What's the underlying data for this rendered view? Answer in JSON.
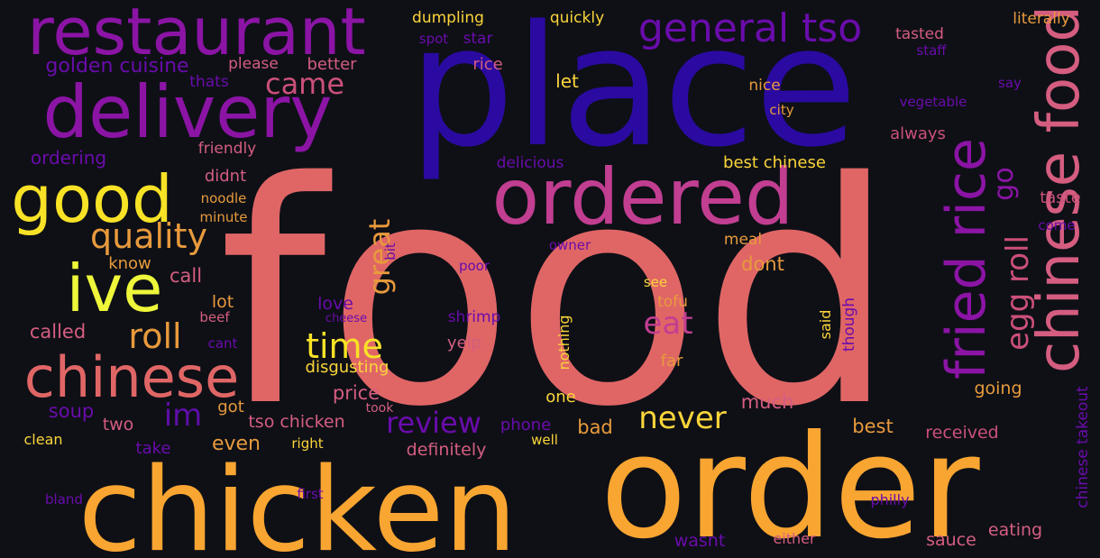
{
  "background": "#0e1016",
  "palette": {
    "salmon": "#e06666",
    "indigo": "#2a0aa0",
    "orange": "#f9a532",
    "purple": "#8b14a5",
    "magenta": "#c13e91",
    "yellow": "#f7e226",
    "pink": "#d45d80",
    "tan": "#e89a3c",
    "deeppurple": "#6a0cab",
    "rose": "#cb5079",
    "violet": "#5d0ea6",
    "lemon": "#fbd53a",
    "lime": "#eff73a"
  },
  "words": [
    {
      "text": "food",
      "color": "salmon"
    },
    {
      "text": "place",
      "color": "indigo"
    },
    {
      "text": "order",
      "color": "orange"
    },
    {
      "text": "chicken",
      "color": "orange"
    },
    {
      "text": "delivery",
      "color": "purple"
    },
    {
      "text": "restaurant",
      "color": "purple"
    },
    {
      "text": "ordered",
      "color": "magenta"
    },
    {
      "text": "chinese",
      "color": "salmon"
    },
    {
      "text": "good",
      "color": "yellow"
    },
    {
      "text": "ive",
      "color": "lime"
    },
    {
      "text": "general tso",
      "color": "deeppurple"
    },
    {
      "text": "chinese food",
      "color": "pink"
    },
    {
      "text": "fried rice",
      "color": "purple"
    },
    {
      "text": "egg roll",
      "color": "rose"
    },
    {
      "text": "go",
      "color": "purple"
    },
    {
      "text": "quality",
      "color": "tan"
    },
    {
      "text": "came",
      "color": "rose"
    },
    {
      "text": "golden cuisine",
      "color": "deeppurple"
    },
    {
      "text": "time",
      "color": "yellow"
    },
    {
      "text": "roll",
      "color": "tan"
    },
    {
      "text": "never",
      "color": "lemon"
    },
    {
      "text": "review",
      "color": "deeppurple"
    },
    {
      "text": "eat",
      "color": "magenta"
    },
    {
      "text": "great",
      "color": "tan"
    },
    {
      "text": "im",
      "color": "violet"
    },
    {
      "text": "even",
      "color": "tan"
    },
    {
      "text": "dumpling",
      "color": "lemon"
    },
    {
      "text": "quickly",
      "color": "lemon"
    },
    {
      "text": "literally",
      "color": "tan"
    },
    {
      "text": "tasted",
      "color": "pink"
    },
    {
      "text": "staff",
      "color": "deeppurple"
    },
    {
      "text": "spot",
      "color": "deeppurple"
    },
    {
      "text": "star",
      "color": "deeppurple"
    },
    {
      "text": "please",
      "color": "pink"
    },
    {
      "text": "better",
      "color": "pink"
    },
    {
      "text": "rice",
      "color": "pink"
    },
    {
      "text": "thats",
      "color": "deeppurple"
    },
    {
      "text": "let",
      "color": "lemon"
    },
    {
      "text": "nice",
      "color": "tan"
    },
    {
      "text": "say",
      "color": "deeppurple"
    },
    {
      "text": "city",
      "color": "tan"
    },
    {
      "text": "vegetable",
      "color": "deeppurple"
    },
    {
      "text": "always",
      "color": "rose"
    },
    {
      "text": "friendly",
      "color": "pink"
    },
    {
      "text": "ordering",
      "color": "deeppurple"
    },
    {
      "text": "delicious",
      "color": "deeppurple"
    },
    {
      "text": "best chinese",
      "color": "lemon"
    },
    {
      "text": "didnt",
      "color": "pink"
    },
    {
      "text": "noodle",
      "color": "tan"
    },
    {
      "text": "taste",
      "color": "rose"
    },
    {
      "text": "minute",
      "color": "tan"
    },
    {
      "text": "come",
      "color": "deeppurple"
    },
    {
      "text": "owner",
      "color": "deeppurple"
    },
    {
      "text": "bit",
      "color": "deeppurple"
    },
    {
      "text": "meal",
      "color": "tan"
    },
    {
      "text": "know",
      "color": "tan"
    },
    {
      "text": "dont",
      "color": "tan"
    },
    {
      "text": "call",
      "color": "pink"
    },
    {
      "text": "poor",
      "color": "deeppurple"
    },
    {
      "text": "see",
      "color": "lemon"
    },
    {
      "text": "lot",
      "color": "tan"
    },
    {
      "text": "love",
      "color": "deeppurple"
    },
    {
      "text": "tofu",
      "color": "tan"
    },
    {
      "text": "beef",
      "color": "pink"
    },
    {
      "text": "cheese",
      "color": "deeppurple"
    },
    {
      "text": "shrimp",
      "color": "deeppurple"
    },
    {
      "text": "nothing",
      "color": "lemon"
    },
    {
      "text": "said",
      "color": "lemon"
    },
    {
      "text": "though",
      "color": "deeppurple"
    },
    {
      "text": "called",
      "color": "pink"
    },
    {
      "text": "cant",
      "color": "deeppurple"
    },
    {
      "text": "yelp",
      "color": "pink"
    },
    {
      "text": "far",
      "color": "tan"
    },
    {
      "text": "disgusting",
      "color": "lemon"
    },
    {
      "text": "price",
      "color": "pink"
    },
    {
      "text": "one",
      "color": "lemon"
    },
    {
      "text": "going",
      "color": "tan"
    },
    {
      "text": "much",
      "color": "pink"
    },
    {
      "text": "soup",
      "color": "deeppurple"
    },
    {
      "text": "got",
      "color": "tan"
    },
    {
      "text": "took",
      "color": "pink"
    },
    {
      "text": "two",
      "color": "pink"
    },
    {
      "text": "tso chicken",
      "color": "pink"
    },
    {
      "text": "phone",
      "color": "deeppurple"
    },
    {
      "text": "bad",
      "color": "tan"
    },
    {
      "text": "best",
      "color": "tan"
    },
    {
      "text": "received",
      "color": "rose"
    },
    {
      "text": "clean",
      "color": "lemon"
    },
    {
      "text": "take",
      "color": "deeppurple"
    },
    {
      "text": "right",
      "color": "lemon"
    },
    {
      "text": "well",
      "color": "lemon"
    },
    {
      "text": "definitely",
      "color": "pink"
    },
    {
      "text": "chinese takeout",
      "color": "deeppurple"
    },
    {
      "text": "bland",
      "color": "deeppurple"
    },
    {
      "text": "first",
      "color": "deeppurple"
    },
    {
      "text": "philly",
      "color": "deeppurple"
    },
    {
      "text": "wasnt",
      "color": "deeppurple"
    },
    {
      "text": "either",
      "color": "pink"
    },
    {
      "text": "sauce",
      "color": "pink"
    },
    {
      "text": "eating",
      "color": "pink"
    }
  ]
}
